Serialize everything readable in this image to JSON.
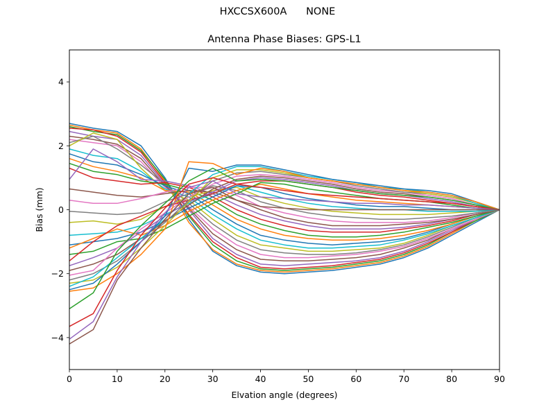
{
  "chart_data": {
    "type": "line",
    "suptitle": "HXCCSX600A      NONE",
    "title": "Antenna Phase Biases: GPS-L1",
    "xlabel": "Elvation angle (degrees)",
    "ylabel": "Bias (mm)",
    "xlim": [
      0,
      90
    ],
    "ylim": [
      -5,
      5
    ],
    "xticks": [
      0,
      10,
      20,
      30,
      40,
      50,
      60,
      70,
      80,
      90
    ],
    "yticks": [
      -4,
      -2,
      0,
      2,
      4
    ],
    "grid": false,
    "legend": "none",
    "x": [
      0,
      5,
      10,
      15,
      20,
      25,
      30,
      35,
      40,
      45,
      50,
      55,
      60,
      65,
      70,
      75,
      80,
      85,
      90
    ],
    "colors": [
      "#1f77b4",
      "#ff7f0e",
      "#2ca02c",
      "#d62728",
      "#9467bd",
      "#8c564b",
      "#e377c2",
      "#7f7f7f",
      "#bcbd22",
      "#17becf"
    ],
    "series": [
      {
        "values": [
          2.7,
          2.55,
          2.45,
          2.0,
          1.0,
          -0.3,
          -1.3,
          -1.75,
          -1.95,
          -2.0,
          -1.95,
          -1.9,
          -1.8,
          -1.7,
          -1.5,
          -1.2,
          -0.8,
          -0.4,
          0
        ]
      },
      {
        "values": [
          2.65,
          2.5,
          2.4,
          1.9,
          0.9,
          -0.4,
          -1.25,
          -1.7,
          -1.9,
          -1.95,
          -1.9,
          -1.85,
          -1.75,
          -1.65,
          -1.45,
          -1.15,
          -0.75,
          -0.35,
          0
        ]
      },
      {
        "values": [
          2.6,
          2.45,
          2.35,
          1.85,
          0.95,
          -0.2,
          -1.1,
          -1.6,
          -1.85,
          -1.9,
          -1.85,
          -1.8,
          -1.7,
          -1.6,
          -1.4,
          -1.1,
          -0.7,
          -0.35,
          0
        ]
      },
      {
        "values": [
          2.55,
          2.5,
          2.3,
          1.8,
          0.85,
          -0.15,
          -1.0,
          -1.5,
          -1.8,
          -1.85,
          -1.8,
          -1.75,
          -1.65,
          -1.55,
          -1.35,
          -1.05,
          -0.7,
          -0.3,
          0
        ]
      },
      {
        "values": [
          2.45,
          2.3,
          2.2,
          1.7,
          0.8,
          0.0,
          -0.9,
          -1.4,
          -1.7,
          -1.75,
          -1.7,
          -1.65,
          -1.6,
          -1.5,
          -1.3,
          -1.0,
          -0.65,
          -0.3,
          0
        ]
      },
      {
        "values": [
          2.3,
          2.2,
          2.05,
          1.6,
          0.75,
          0.05,
          -0.75,
          -1.25,
          -1.55,
          -1.6,
          -1.6,
          -1.55,
          -1.5,
          -1.4,
          -1.2,
          -0.95,
          -0.6,
          -0.3,
          0
        ]
      },
      {
        "values": [
          2.2,
          2.1,
          2.0,
          1.5,
          0.7,
          0.1,
          -0.6,
          -1.1,
          -1.4,
          -1.5,
          -1.5,
          -1.45,
          -1.4,
          -1.3,
          -1.15,
          -0.9,
          -0.6,
          -0.3,
          0
        ]
      },
      {
        "values": [
          2.1,
          2.3,
          1.9,
          1.4,
          0.8,
          0.2,
          -0.45,
          -0.95,
          -1.25,
          -1.35,
          -1.4,
          -1.4,
          -1.35,
          -1.25,
          -1.1,
          -0.85,
          -0.55,
          -0.25,
          0
        ]
      },
      {
        "values": [
          2.0,
          2.4,
          2.2,
          1.3,
          0.6,
          0.3,
          -0.3,
          -0.8,
          -1.1,
          -1.2,
          -1.3,
          -1.3,
          -1.25,
          -1.2,
          -1.05,
          -0.8,
          -0.5,
          -0.25,
          0
        ]
      },
      {
        "values": [
          1.9,
          1.7,
          1.6,
          1.2,
          0.65,
          0.4,
          -0.15,
          -0.6,
          -0.95,
          -1.1,
          -1.2,
          -1.2,
          -1.15,
          -1.1,
          -0.95,
          -0.75,
          -0.5,
          -0.25,
          0
        ]
      },
      {
        "values": [
          1.75,
          1.5,
          1.4,
          1.1,
          0.75,
          0.5,
          0.0,
          -0.45,
          -0.8,
          -0.95,
          -1.05,
          -1.1,
          -1.05,
          -1.0,
          -0.9,
          -0.7,
          -0.45,
          -0.2,
          0
        ]
      },
      {
        "values": [
          1.6,
          1.35,
          1.2,
          1.0,
          0.6,
          0.55,
          0.15,
          -0.3,
          -0.6,
          -0.8,
          -0.9,
          -0.95,
          -0.95,
          -0.9,
          -0.8,
          -0.65,
          -0.45,
          -0.2,
          0
        ]
      },
      {
        "values": [
          1.45,
          1.2,
          1.1,
          0.9,
          0.8,
          0.6,
          0.3,
          -0.15,
          -0.45,
          -0.65,
          -0.8,
          -0.85,
          -0.85,
          -0.8,
          -0.7,
          -0.55,
          -0.4,
          -0.2,
          0
        ]
      },
      {
        "values": [
          1.3,
          1.0,
          0.9,
          0.8,
          0.85,
          0.7,
          0.4,
          0.0,
          -0.3,
          -0.5,
          -0.65,
          -0.7,
          -0.7,
          -0.7,
          -0.6,
          -0.5,
          -0.35,
          -0.15,
          0
        ]
      },
      {
        "values": [
          0.95,
          1.9,
          1.5,
          0.95,
          0.9,
          0.75,
          0.5,
          0.15,
          -0.15,
          -0.35,
          -0.5,
          -0.6,
          -0.6,
          -0.6,
          -0.55,
          -0.45,
          -0.3,
          -0.15,
          0
        ]
      },
      {
        "values": [
          0.65,
          0.55,
          0.45,
          0.4,
          0.5,
          0.6,
          0.55,
          0.3,
          0.0,
          -0.25,
          -0.4,
          -0.5,
          -0.5,
          -0.5,
          -0.45,
          -0.4,
          -0.3,
          -0.15,
          0
        ]
      },
      {
        "values": [
          0.3,
          0.2,
          0.2,
          0.35,
          0.55,
          0.7,
          0.7,
          0.45,
          0.1,
          -0.1,
          -0.25,
          -0.35,
          -0.4,
          -0.4,
          -0.4,
          -0.35,
          -0.25,
          -0.1,
          0
        ]
      },
      {
        "values": [
          -0.05,
          -0.1,
          -0.15,
          -0.1,
          0.25,
          0.5,
          0.75,
          0.6,
          0.25,
          0.05,
          -0.1,
          -0.2,
          -0.25,
          -0.3,
          -0.3,
          -0.25,
          -0.2,
          -0.1,
          0
        ]
      },
      {
        "values": [
          -0.4,
          -0.35,
          -0.45,
          -0.3,
          0.1,
          0.4,
          0.6,
          0.7,
          0.4,
          0.2,
          0.05,
          -0.05,
          -0.1,
          -0.15,
          -0.15,
          -0.15,
          -0.1,
          -0.05,
          0
        ]
      },
      {
        "values": [
          -0.8,
          -0.75,
          -0.7,
          -0.5,
          -0.15,
          0.2,
          0.5,
          0.75,
          0.55,
          0.35,
          0.2,
          0.1,
          0.05,
          0.0,
          0.0,
          -0.05,
          -0.05,
          -0.05,
          0
        ]
      },
      {
        "values": [
          -1.1,
          -1.0,
          -0.9,
          -0.7,
          -0.35,
          0.05,
          0.4,
          0.75,
          0.7,
          0.5,
          0.35,
          0.25,
          0.15,
          0.1,
          0.1,
          0.05,
          0.0,
          0.0,
          0
        ]
      },
      {
        "values": [
          -1.2,
          -0.9,
          -0.6,
          -0.8,
          -0.5,
          -0.05,
          0.3,
          0.6,
          0.8,
          0.65,
          0.5,
          0.4,
          0.3,
          0.25,
          0.2,
          0.15,
          0.1,
          0.05,
          0
        ]
      },
      {
        "values": [
          -1.4,
          -1.3,
          -1.0,
          -0.9,
          -0.6,
          -0.2,
          0.2,
          0.5,
          0.85,
          0.8,
          0.65,
          0.55,
          0.45,
          0.35,
          0.3,
          0.25,
          0.15,
          0.05,
          0
        ]
      },
      {
        "values": [
          -1.6,
          -1.0,
          -0.5,
          -0.2,
          0.1,
          0.3,
          0.5,
          0.8,
          0.9,
          0.9,
          0.8,
          0.7,
          0.55,
          0.45,
          0.4,
          0.3,
          0.2,
          0.1,
          0
        ]
      },
      {
        "values": [
          -1.75,
          -1.5,
          -1.2,
          -0.7,
          -0.2,
          0.25,
          0.55,
          0.9,
          1.0,
          0.95,
          0.85,
          0.75,
          0.6,
          0.5,
          0.45,
          0.35,
          0.25,
          0.1,
          0
        ]
      },
      {
        "values": [
          -1.9,
          -1.7,
          -1.4,
          -0.9,
          -0.35,
          0.15,
          0.65,
          0.95,
          1.05,
          1.0,
          0.9,
          0.8,
          0.65,
          0.55,
          0.5,
          0.4,
          0.3,
          0.15,
          0
        ]
      },
      {
        "values": [
          -2.05,
          -1.9,
          -1.2,
          -0.6,
          -0.1,
          0.4,
          0.8,
          1.05,
          1.1,
          1.05,
          0.95,
          0.85,
          0.7,
          0.6,
          0.55,
          0.45,
          0.35,
          0.15,
          0
        ]
      },
      {
        "values": [
          -2.2,
          -2.0,
          -1.6,
          -1.0,
          -0.4,
          0.3,
          0.9,
          1.15,
          1.2,
          1.1,
          1.0,
          0.9,
          0.75,
          0.65,
          0.55,
          0.5,
          0.4,
          0.2,
          0
        ]
      },
      {
        "values": [
          -2.3,
          -2.2,
          -1.8,
          -1.2,
          -0.5,
          0.25,
          1.0,
          1.25,
          1.25,
          1.15,
          1.0,
          0.9,
          0.8,
          0.7,
          0.6,
          0.5,
          0.4,
          0.2,
          0
        ]
      },
      {
        "values": [
          -2.4,
          -2.1,
          -1.5,
          -0.9,
          -0.3,
          0.5,
          1.1,
          1.35,
          1.35,
          1.2,
          1.05,
          0.95,
          0.85,
          0.7,
          0.65,
          0.55,
          0.45,
          0.2,
          0
        ]
      },
      {
        "values": [
          -2.5,
          -2.3,
          -1.7,
          -1.0,
          -0.2,
          1.3,
          1.2,
          1.4,
          1.4,
          1.25,
          1.1,
          0.95,
          0.85,
          0.75,
          0.65,
          0.6,
          0.5,
          0.25,
          0
        ]
      },
      {
        "values": [
          -2.55,
          -2.45,
          -2.0,
          -1.4,
          -0.6,
          1.5,
          1.45,
          1.1,
          1.3,
          1.2,
          1.0,
          0.9,
          0.8,
          0.7,
          0.6,
          0.55,
          0.45,
          0.25,
          0
        ]
      },
      {
        "values": [
          -3.1,
          -2.6,
          -1.3,
          -0.5,
          0.2,
          0.9,
          1.3,
          0.9,
          0.95,
          0.9,
          0.8,
          0.7,
          0.6,
          0.5,
          0.45,
          0.4,
          0.3,
          0.15,
          0
        ]
      },
      {
        "values": [
          -3.65,
          -3.25,
          -1.9,
          -0.8,
          0.05,
          0.8,
          1.0,
          0.8,
          0.7,
          0.6,
          0.5,
          0.45,
          0.4,
          0.35,
          0.3,
          0.25,
          0.2,
          0.1,
          0
        ]
      },
      {
        "values": [
          -4.05,
          -3.5,
          -2.1,
          -1.0,
          -0.1,
          0.7,
          0.9,
          0.5,
          0.4,
          0.35,
          0.3,
          0.25,
          0.2,
          0.2,
          0.15,
          0.15,
          0.1,
          0.05,
          0
        ]
      },
      {
        "values": [
          -4.2,
          -3.75,
          -2.2,
          -1.2,
          -0.3,
          0.5,
          0.7,
          0.3,
          0.1,
          0.05,
          0.0,
          0.0,
          0.0,
          0.0,
          0.0,
          0.0,
          0.0,
          0.0,
          0
        ]
      }
    ]
  }
}
